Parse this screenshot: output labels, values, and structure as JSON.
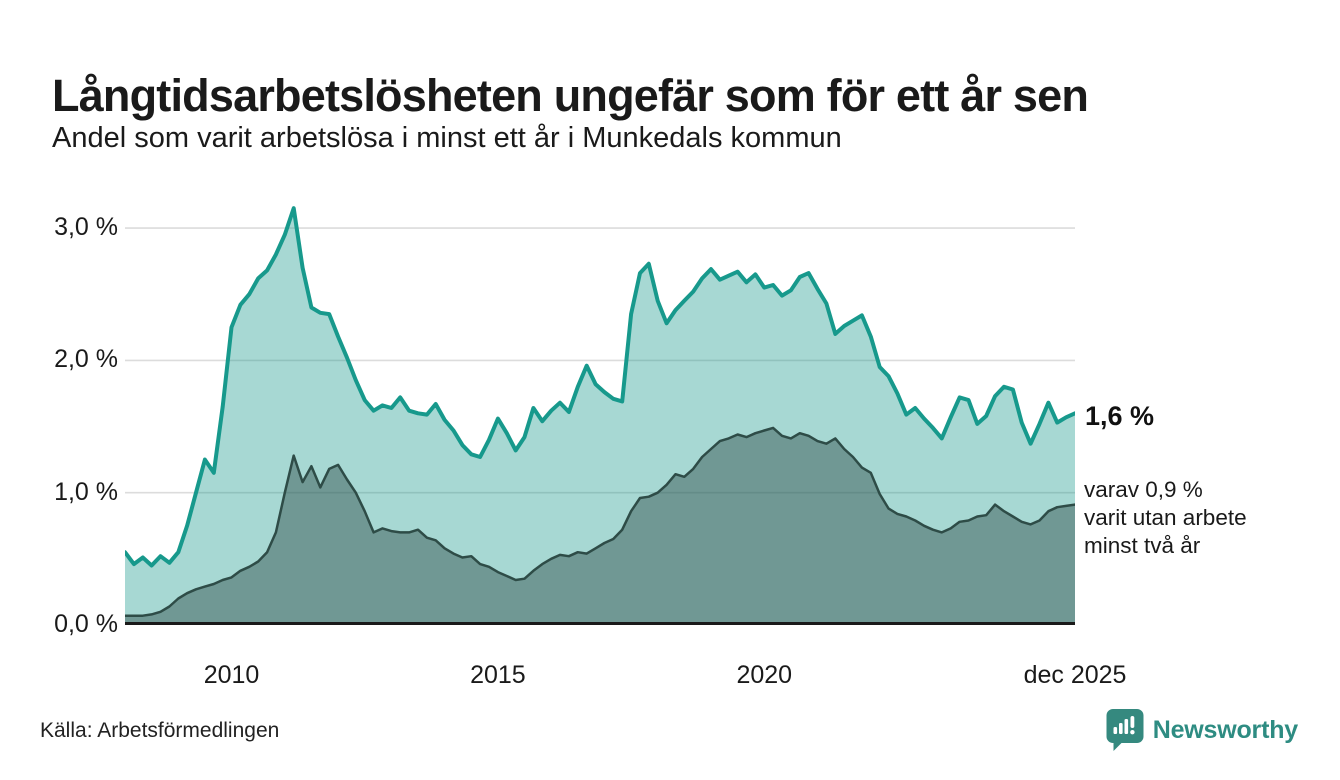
{
  "header": {
    "title": "Långtidsarbetslösheten ungefär som för ett år sen",
    "subtitle": "Andel som varit arbetslösa i minst ett år i Munkedals kommun"
  },
  "chart_data": {
    "type": "area",
    "title": "Långtidsarbetslösheten ungefär som för ett år sen",
    "subtitle": "Andel som varit arbetslösa i minst ett år i Munkedals kommun",
    "unit": "%",
    "ylim": [
      0,
      3.25
    ],
    "grid": "horizontal",
    "y_ticks": [
      {
        "value": 0.0,
        "label": "0,0 %"
      },
      {
        "value": 1.0,
        "label": "1,0 %"
      },
      {
        "value": 2.0,
        "label": "2,0 %"
      },
      {
        "value": 3.0,
        "label": "3,0 %"
      }
    ],
    "x_ticks": [
      {
        "pos": 12,
        "label": "2010"
      },
      {
        "pos": 42,
        "label": "2015"
      },
      {
        "pos": 72,
        "label": "2020"
      },
      {
        "pos": 107,
        "label": "dec 2025"
      }
    ],
    "x_range_years": [
      2008,
      2025.92
    ],
    "points_per_year": 6,
    "colors": {
      "line_one_year": "#17998c",
      "fill_one_year": "rgba(23,153,140,0.38)",
      "line_two_years": "#2e4c47",
      "fill_two_years": "rgba(46,76,71,0.45)",
      "gridline": "#dcdcdc",
      "axis": "#1a1a1a"
    },
    "series": [
      {
        "name": "minst ett år",
        "color": "#17998c",
        "fill": "rgba(23,153,140,0.38)",
        "stroke_width": 4,
        "values": [
          0.55,
          0.46,
          0.51,
          0.45,
          0.52,
          0.47,
          0.55,
          0.75,
          1.0,
          1.25,
          1.15,
          1.65,
          2.25,
          2.42,
          2.5,
          2.62,
          2.68,
          2.8,
          2.95,
          3.15,
          2.7,
          2.4,
          2.36,
          2.35,
          2.18,
          2.02,
          1.85,
          1.7,
          1.62,
          1.66,
          1.64,
          1.72,
          1.62,
          1.6,
          1.59,
          1.67,
          1.55,
          1.47,
          1.36,
          1.29,
          1.27,
          1.4,
          1.56,
          1.45,
          1.32,
          1.42,
          1.64,
          1.54,
          1.62,
          1.68,
          1.61,
          1.8,
          1.96,
          1.82,
          1.76,
          1.71,
          1.69,
          2.35,
          2.66,
          2.73,
          2.45,
          2.28,
          2.38,
          2.45,
          2.52,
          2.62,
          2.69,
          2.61,
          2.64,
          2.67,
          2.59,
          2.65,
          2.55,
          2.57,
          2.49,
          2.53,
          2.63,
          2.66,
          2.54,
          2.43,
          2.2,
          2.26,
          2.3,
          2.34,
          2.18,
          1.95,
          1.88,
          1.75,
          1.59,
          1.64,
          1.56,
          1.49,
          1.41,
          1.57,
          1.72,
          1.7,
          1.52,
          1.58,
          1.73,
          1.8,
          1.78,
          1.53,
          1.37,
          1.52,
          1.68,
          1.53,
          1.57,
          1.6
        ]
      },
      {
        "name": "minst två år",
        "color": "#2e4c47",
        "fill": "rgba(46,76,71,0.45)",
        "stroke_width": 2.5,
        "values": [
          0.07,
          0.07,
          0.07,
          0.08,
          0.1,
          0.14,
          0.2,
          0.24,
          0.27,
          0.29,
          0.31,
          0.34,
          0.36,
          0.41,
          0.44,
          0.48,
          0.55,
          0.7,
          1.0,
          1.28,
          1.08,
          1.2,
          1.04,
          1.18,
          1.21,
          1.1,
          1.0,
          0.86,
          0.7,
          0.73,
          0.71,
          0.7,
          0.7,
          0.72,
          0.66,
          0.64,
          0.58,
          0.54,
          0.51,
          0.52,
          0.46,
          0.44,
          0.4,
          0.37,
          0.34,
          0.35,
          0.41,
          0.46,
          0.5,
          0.53,
          0.52,
          0.55,
          0.54,
          0.58,
          0.62,
          0.65,
          0.72,
          0.86,
          0.96,
          0.97,
          1.0,
          1.06,
          1.14,
          1.12,
          1.18,
          1.27,
          1.33,
          1.39,
          1.41,
          1.44,
          1.42,
          1.45,
          1.47,
          1.49,
          1.43,
          1.41,
          1.45,
          1.43,
          1.39,
          1.37,
          1.41,
          1.33,
          1.27,
          1.19,
          1.15,
          0.99,
          0.88,
          0.84,
          0.82,
          0.79,
          0.75,
          0.72,
          0.7,
          0.73,
          0.78,
          0.79,
          0.82,
          0.83,
          0.91,
          0.86,
          0.82,
          0.78,
          0.76,
          0.79,
          0.86,
          0.89,
          0.9,
          0.91
        ]
      }
    ],
    "end_labels": {
      "primary": "1,6 %",
      "secondary_lines": [
        "varav 0,9 %",
        "varit utan arbete",
        "minst två år"
      ]
    },
    "legend_position": "none"
  },
  "footer": {
    "source": "Källa: Arbetsförmedlingen",
    "brand": "Newsworthy",
    "brand_color": "#2e8c82",
    "brand_icon_color": "#35897f"
  }
}
